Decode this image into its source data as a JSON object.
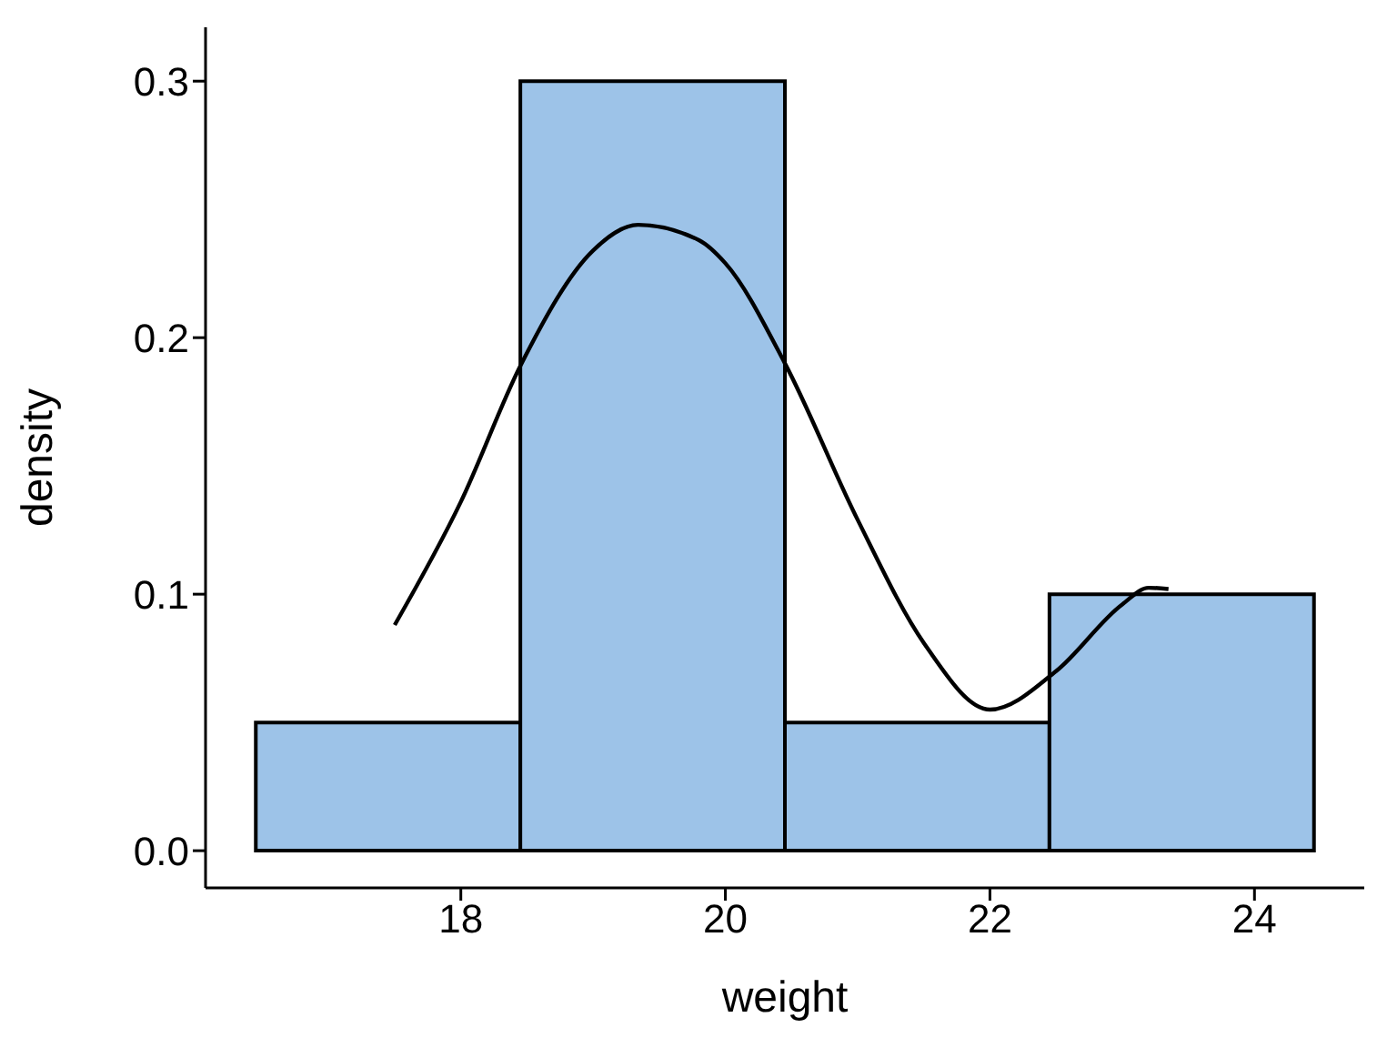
{
  "chart_data": {
    "type": "histogram",
    "xlabel": "weight",
    "ylabel": "density",
    "bins": [
      16.45,
      18.45,
      20.45,
      22.45,
      24.45
    ],
    "values": [
      0.05,
      0.3,
      0.05,
      0.1
    ],
    "color": "#9dc3e8",
    "series": [
      {
        "type": "line",
        "color": "#000000",
        "x": [
          17.5,
          18,
          18.45,
          19,
          19.34,
          19.8,
          20,
          20.45,
          21,
          21.5,
          22,
          22.5,
          23,
          23.2,
          23.35
        ],
        "values": [
          0.088,
          0.136,
          0.189,
          0.234,
          0.244,
          0.238,
          0.229,
          0.19,
          0.129,
          0.081,
          0.055,
          0.07,
          0.096,
          0.1025,
          0.102
        ]
      }
    ],
    "xlim": [
      16.07,
      24.83
    ],
    "ylim": [
      -0.0145,
      0.321
    ],
    "xticks": [
      18,
      20,
      22,
      24
    ],
    "yticks": [
      {
        "value": 0,
        "label": "0.0"
      },
      {
        "value": 0.1,
        "label": "0.1"
      },
      {
        "value": 0.2,
        "label": "0.2"
      },
      {
        "value": 0.3,
        "label": "0.3"
      }
    ],
    "grid": false,
    "legend": false,
    "marker": "none",
    "line_style": "solid"
  }
}
